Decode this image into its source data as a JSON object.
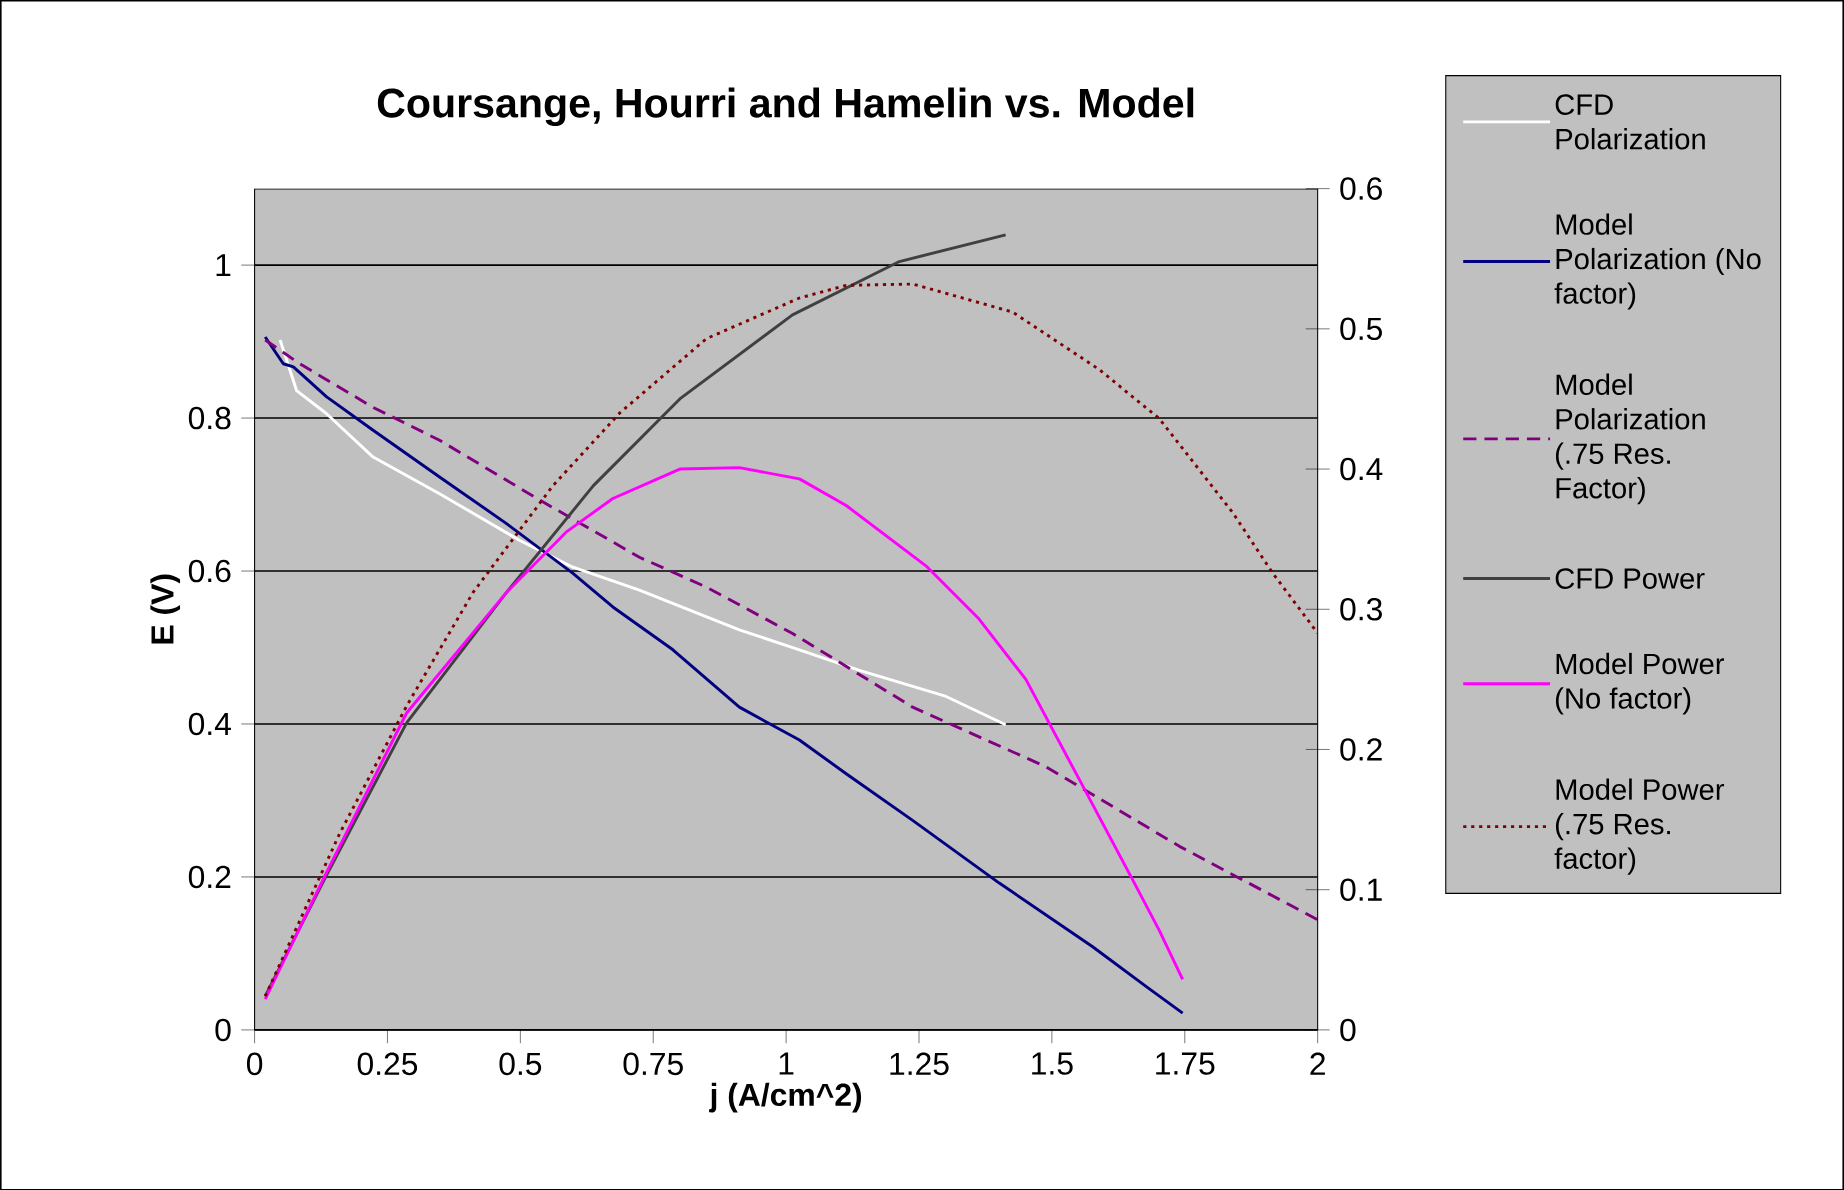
{
  "chart_data": {
    "type": "line",
    "title": "Coursange, Hourri and Hamelin vs. Model",
    "xlabel": "j (A/cm^2)",
    "ylabel": "E (V)",
    "xlim": [
      0,
      2
    ],
    "xticks": [
      0,
      0.25,
      0.5,
      0.75,
      1,
      1.25,
      1.5,
      1.75,
      2
    ],
    "ylim": [
      0,
      1.1
    ],
    "yticks": [
      0,
      0.2,
      0.4,
      0.6,
      0.8,
      1
    ],
    "y2lim": [
      0,
      0.6
    ],
    "y2ticks": [
      0,
      0.1,
      0.2,
      0.3,
      0.4,
      0.5,
      0.6
    ],
    "grid": "y",
    "legend": "right",
    "series": [
      {
        "name": "CFD Polarization",
        "color": "#ffffff",
        "line_style": "solid",
        "x": [
          0.048,
          0.079,
          0.135,
          0.223,
          0.348,
          0.499,
          0.599,
          0.724,
          0.912,
          1.025,
          1.138,
          1.301,
          1.413
        ],
        "values": [
          0.902,
          0.836,
          0.806,
          0.749,
          0.701,
          0.64,
          0.605,
          0.575,
          0.523,
          0.497,
          0.47,
          0.436,
          0.399
        ]
      },
      {
        "name": "Model Polarization (No factor)",
        "color": "#000080",
        "line_style": "solid",
        "x": [
          0.02,
          0.054,
          0.073,
          0.135,
          0.223,
          0.348,
          0.474,
          0.599,
          0.674,
          0.787,
          0.912,
          1.025,
          1.113,
          1.238,
          1.401,
          1.576,
          1.677,
          1.746
        ],
        "values": [
          0.906,
          0.871,
          0.867,
          0.828,
          0.784,
          0.723,
          0.662,
          0.597,
          0.553,
          0.497,
          0.422,
          0.379,
          0.335,
          0.274,
          0.192,
          0.109,
          0.057,
          0.022
        ]
      },
      {
        "name": "Model Polarization (.75 Res. Factor)",
        "color": "#800080",
        "line_style": "dashed",
        "x": [
          0.02,
          0.085,
          0.223,
          0.348,
          0.536,
          0.724,
          0.85,
          1.013,
          1.238,
          1.489,
          1.74,
          2
        ],
        "values": [
          0.902,
          0.871,
          0.814,
          0.771,
          0.693,
          0.618,
          0.579,
          0.518,
          0.422,
          0.344,
          0.24,
          0.144
        ]
      },
      {
        "name": "CFD Power",
        "color": "#404040",
        "line_style": "solid",
        "axis": "y2",
        "x": [
          0.02,
          0.135,
          0.286,
          0.474,
          0.637,
          0.8,
          1.012,
          1.213,
          1.413
        ],
        "values": [
          0.024,
          0.11,
          0.219,
          0.312,
          0.388,
          0.45,
          0.51,
          0.548,
          0.567
        ]
      },
      {
        "name": "Model Power (No factor)",
        "color": "#ff00ff",
        "line_style": "solid",
        "axis": "y2",
        "x": [
          0.02,
          0.135,
          0.286,
          0.474,
          0.586,
          0.674,
          0.8,
          0.912,
          1.025,
          1.113,
          1.263,
          1.363,
          1.451,
          1.551,
          1.652,
          1.702,
          1.746
        ],
        "values": [
          0.022,
          0.112,
          0.226,
          0.312,
          0.355,
          0.379,
          0.4,
          0.401,
          0.393,
          0.374,
          0.331,
          0.293,
          0.25,
          0.179,
          0.107,
          0.071,
          0.036
        ]
      },
      {
        "name": "Model Power (.75 Res. factor)",
        "color": "#800000",
        "line_style": "dotted",
        "axis": "y2",
        "x": [
          0.02,
          0.16,
          0.286,
          0.411,
          0.561,
          0.687,
          0.85,
          1.025,
          1.113,
          1.238,
          1.426,
          1.589,
          1.702,
          1.84,
          1.915,
          2
        ],
        "values": [
          0.024,
          0.14,
          0.231,
          0.312,
          0.388,
          0.44,
          0.493,
          0.522,
          0.531,
          0.532,
          0.512,
          0.471,
          0.436,
          0.369,
          0.326,
          0.283
        ]
      }
    ]
  }
}
